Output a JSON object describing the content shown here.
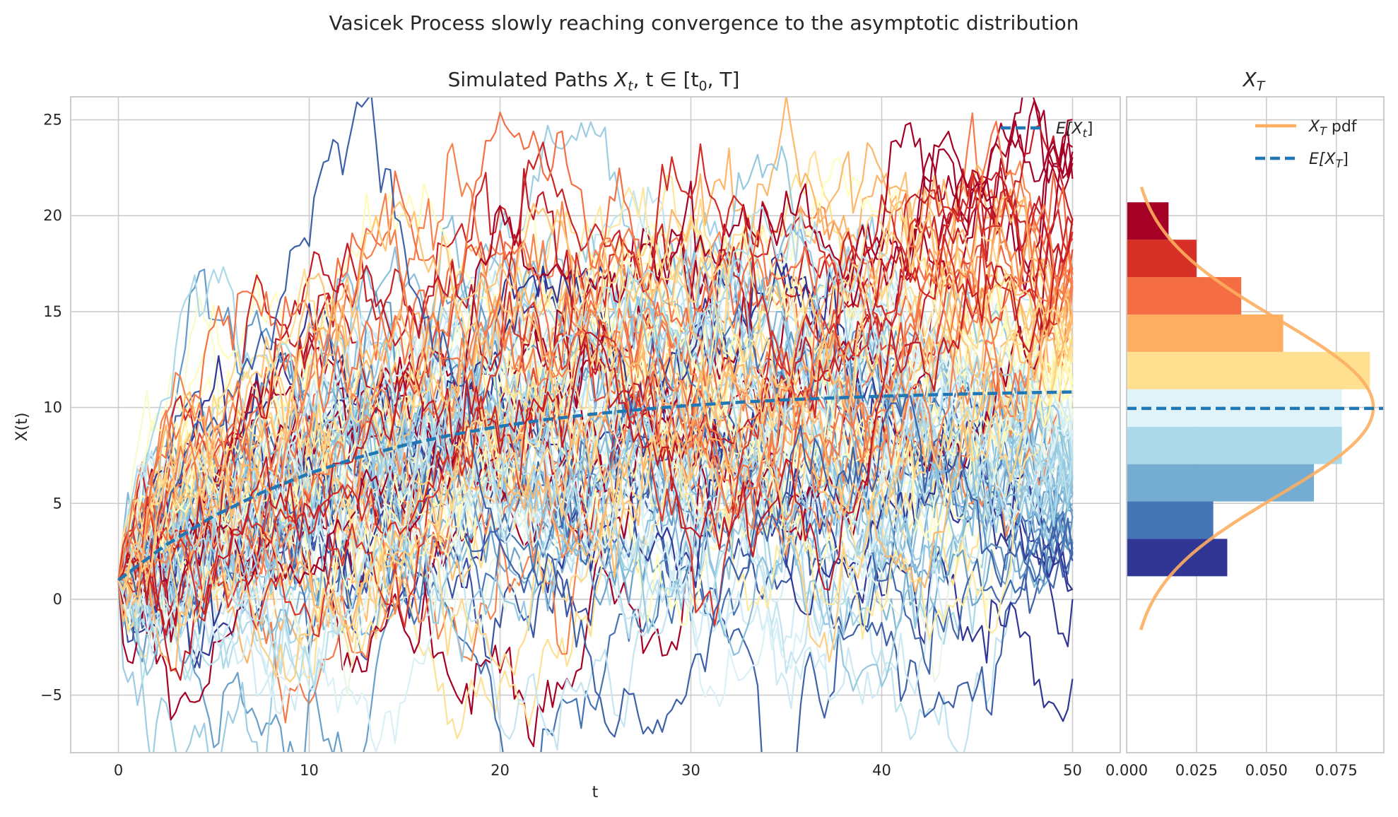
{
  "suptitle": "Vasicek Process slowly reaching convergence to the asymptotic distribution",
  "colors": {
    "mean_line": "#1f77b4",
    "pdf_line": "#fdae61",
    "grid": "#cccccc",
    "path_colormap": [
      "#313695",
      "#4575b4",
      "#74add1",
      "#abd9e9",
      "#e0f3f8",
      "#ffffbf",
      "#fee090",
      "#fdae61",
      "#f46d43",
      "#d73027",
      "#a50026"
    ]
  },
  "chart_data": [
    {
      "type": "line",
      "title": "Simulated Paths X_t, t ∈ [t_0, T]",
      "xlabel": "t",
      "ylabel": "X(t)",
      "xlim": [
        -2.5,
        52.5
      ],
      "ylim": [
        -8.0,
        26.2
      ],
      "xticks": [
        0,
        10,
        20,
        30,
        40,
        50
      ],
      "yticks": [
        -5,
        0,
        5,
        10,
        15,
        20,
        25
      ],
      "xtick_labels": [
        "0",
        "10",
        "20",
        "30",
        "40",
        "50"
      ],
      "ytick_labels": [
        "−5",
        "0",
        "5",
        "10",
        "15",
        "20",
        "25"
      ],
      "grid": true,
      "legend_position": "top-right",
      "legend": [
        "E[X_t]"
      ],
      "mean_series": {
        "name": "E[X_t]",
        "style": "dashed",
        "x": [
          0,
          2.5,
          5,
          7.5,
          10,
          12.5,
          15,
          17.5,
          20,
          22.5,
          25,
          27.5,
          30,
          32.5,
          35,
          37.5,
          40,
          42.5,
          45,
          47.5,
          50
        ],
        "values": [
          1.0,
          2.84,
          4.34,
          5.56,
          6.56,
          7.38,
          8.04,
          8.58,
          9.02,
          9.38,
          9.67,
          9.91,
          10.11,
          10.27,
          10.4,
          10.5,
          10.59,
          10.66,
          10.72,
          10.77,
          10.81
        ]
      },
      "paths": {
        "count": 100,
        "steps": 200,
        "x_start": 0,
        "x_end": 50,
        "x0": 1.0,
        "long_run_mean": 10.0,
        "note_visible_range": "paths start at 1 and spread between about -6.5 and 24.5"
      }
    },
    {
      "type": "bar",
      "orientation": "horizontal",
      "title": "X_T",
      "xlim": [
        0.0,
        0.092
      ],
      "ylim": [
        -8.0,
        26.2
      ],
      "xticks": [
        0.0,
        0.025,
        0.05,
        0.075
      ],
      "xtick_labels": [
        "0.000",
        "0.025",
        "0.050",
        "0.075"
      ],
      "grid": true,
      "legend_position": "top-right",
      "legend": [
        "X_T pdf",
        "E[X_T]"
      ],
      "bins": [
        {
          "y0": 1.2,
          "y1": 3.15,
          "density": 0.036,
          "color": "#313695"
        },
        {
          "y0": 3.15,
          "y1": 5.1,
          "density": 0.031,
          "color": "#4575b4"
        },
        {
          "y0": 5.1,
          "y1": 7.05,
          "density": 0.067,
          "color": "#74add1"
        },
        {
          "y0": 7.05,
          "y1": 9.0,
          "density": 0.077,
          "color": "#abd9e9"
        },
        {
          "y0": 9.0,
          "y1": 10.95,
          "density": 0.077,
          "color": "#e0f3f8"
        },
        {
          "y0": 10.95,
          "y1": 12.9,
          "density": 0.087,
          "color": "#fee090"
        },
        {
          "y0": 12.9,
          "y1": 14.85,
          "density": 0.056,
          "color": "#fdae61"
        },
        {
          "y0": 14.85,
          "y1": 16.8,
          "density": 0.041,
          "color": "#f46d43"
        },
        {
          "y0": 16.8,
          "y1": 18.75,
          "density": 0.025,
          "color": "#d73027"
        },
        {
          "y0": 18.75,
          "y1": 20.7,
          "density": 0.015,
          "color": "#a50026"
        }
      ],
      "pdf": {
        "name": "X_T pdf",
        "mean": 10.0,
        "std": 4.6,
        "y_range": [
          -1.6,
          21.5
        ]
      },
      "mean_value": 9.95
    }
  ],
  "labels": {
    "left_title_text": "Simulated Paths ",
    "left_title_math_var": "X",
    "left_title_math_sub": "t",
    "left_title_math_rest": ", t ∈ [t",
    "left_title_math_sub0": "0",
    "left_title_math_end": ", T]",
    "right_title_var": "X",
    "right_title_sub": "T",
    "legend_left_mean_var": "E[X",
    "legend_left_mean_sub": "t",
    "legend_left_mean_end": "]",
    "legend_right_pdf_var": "X",
    "legend_right_pdf_sub": "T",
    "legend_right_pdf_rest": " pdf",
    "legend_right_mean_var": "E[X",
    "legend_right_mean_sub": "T",
    "legend_right_mean_end": "]"
  }
}
